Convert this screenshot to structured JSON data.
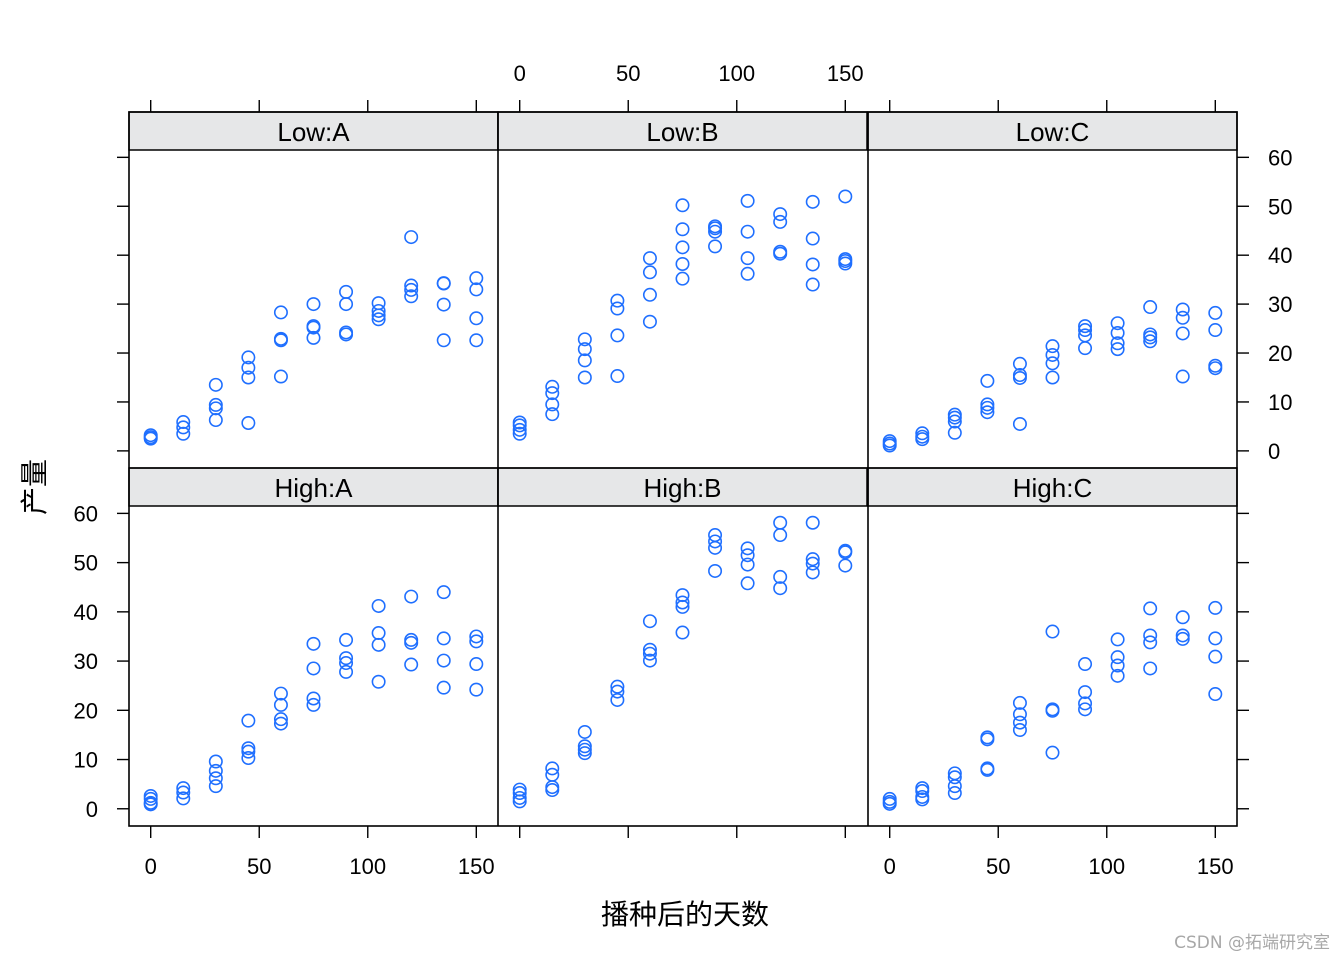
{
  "chart_data": {
    "type": "scatter",
    "xlabel": "播种后的天数",
    "ylabel": "产量",
    "xlim": [
      -10,
      160
    ],
    "ylim": [
      -3.5,
      61.5
    ],
    "x_ticks": [
      0,
      50,
      100,
      150
    ],
    "y_ticks": [
      0,
      10,
      20,
      30,
      40,
      50,
      60
    ],
    "point_color": "#1f6fff",
    "strip_color": "#e6e7e8",
    "layout": "2 rows x 3 columns",
    "panels": [
      {
        "label": "Low:A",
        "points": [
          [
            0,
            2.5
          ],
          [
            0,
            3.2
          ],
          [
            0,
            2.8
          ],
          [
            15,
            3.5
          ],
          [
            15,
            4.8
          ],
          [
            15,
            5.9
          ],
          [
            30,
            6.3
          ],
          [
            30,
            8.7
          ],
          [
            30,
            9.4
          ],
          [
            30,
            13.5
          ],
          [
            45,
            5.7
          ],
          [
            45,
            15
          ],
          [
            45,
            17
          ],
          [
            45,
            19.1
          ],
          [
            60,
            15.2
          ],
          [
            60,
            22.6
          ],
          [
            60,
            22.9
          ],
          [
            60,
            28.3
          ],
          [
            75,
            23.1
          ],
          [
            75,
            25.2
          ],
          [
            75,
            25.5
          ],
          [
            75,
            30
          ],
          [
            90,
            23.8
          ],
          [
            90,
            24.2
          ],
          [
            90,
            30
          ],
          [
            90,
            32.5
          ],
          [
            105,
            26.9
          ],
          [
            105,
            27.7
          ],
          [
            105,
            28.6
          ],
          [
            105,
            30.2
          ],
          [
            120,
            31.6
          ],
          [
            120,
            32.9
          ],
          [
            120,
            33.8
          ],
          [
            120,
            43.7
          ],
          [
            135,
            22.6
          ],
          [
            135,
            29.9
          ],
          [
            135,
            34.2
          ],
          [
            135,
            34.3
          ],
          [
            150,
            22.6
          ],
          [
            150,
            27.1
          ],
          [
            150,
            33
          ],
          [
            150,
            35.3
          ]
        ]
      },
      {
        "label": "Low:B",
        "points": [
          [
            0,
            3.5
          ],
          [
            0,
            4.3
          ],
          [
            0,
            5.2
          ],
          [
            0,
            5.8
          ],
          [
            15,
            7.5
          ],
          [
            15,
            9.5
          ],
          [
            15,
            11.8
          ],
          [
            15,
            13.1
          ],
          [
            30,
            15
          ],
          [
            30,
            18.5
          ],
          [
            30,
            20.8
          ],
          [
            30,
            22.8
          ],
          [
            45,
            15.3
          ],
          [
            45,
            23.6
          ],
          [
            45,
            29.1
          ],
          [
            45,
            30.7
          ],
          [
            60,
            26.4
          ],
          [
            60,
            31.9
          ],
          [
            60,
            36.5
          ],
          [
            60,
            39.4
          ],
          [
            75,
            35.2
          ],
          [
            75,
            38.2
          ],
          [
            75,
            41.6
          ],
          [
            75,
            45.3
          ],
          [
            75,
            50.2
          ],
          [
            90,
            41.8
          ],
          [
            90,
            44.8
          ],
          [
            90,
            45.5
          ],
          [
            90,
            45.9
          ],
          [
            105,
            36.2
          ],
          [
            105,
            39.4
          ],
          [
            105,
            44.8
          ],
          [
            105,
            51.1
          ],
          [
            120,
            40.3
          ],
          [
            120,
            40.7
          ],
          [
            120,
            46.8
          ],
          [
            120,
            48.4
          ],
          [
            135,
            34
          ],
          [
            135,
            38.1
          ],
          [
            135,
            43.4
          ],
          [
            135,
            50.9
          ],
          [
            150,
            38.3
          ],
          [
            150,
            38.8
          ],
          [
            150,
            39.2
          ],
          [
            150,
            52
          ]
        ]
      },
      {
        "label": "Low:C",
        "points": [
          [
            0,
            1.1
          ],
          [
            0,
            1.5
          ],
          [
            0,
            2
          ],
          [
            15,
            2.4
          ],
          [
            15,
            2.9
          ],
          [
            15,
            3.6
          ],
          [
            30,
            3.7
          ],
          [
            30,
            6
          ],
          [
            30,
            6.8
          ],
          [
            30,
            7.4
          ],
          [
            45,
            7.9
          ],
          [
            45,
            8.8
          ],
          [
            45,
            9.5
          ],
          [
            45,
            14.3
          ],
          [
            60,
            5.5
          ],
          [
            60,
            14.9
          ],
          [
            60,
            15.5
          ],
          [
            60,
            17.8
          ],
          [
            75,
            15
          ],
          [
            75,
            17.9
          ],
          [
            75,
            19.6
          ],
          [
            75,
            21.4
          ],
          [
            90,
            21
          ],
          [
            90,
            23.6
          ],
          [
            90,
            24.7
          ],
          [
            90,
            25.5
          ],
          [
            105,
            20.8
          ],
          [
            105,
            22
          ],
          [
            105,
            24.1
          ],
          [
            105,
            26.1
          ],
          [
            120,
            22.4
          ],
          [
            120,
            23.2
          ],
          [
            120,
            23.8
          ],
          [
            120,
            29.4
          ],
          [
            135,
            15.2
          ],
          [
            135,
            24
          ],
          [
            135,
            27.2
          ],
          [
            135,
            28.9
          ],
          [
            150,
            16.9
          ],
          [
            150,
            17.4
          ],
          [
            150,
            24.7
          ],
          [
            150,
            28.2
          ]
        ]
      },
      {
        "label": "High:A",
        "points": [
          [
            0,
            0.9
          ],
          [
            0,
            1.2
          ],
          [
            0,
            2
          ],
          [
            0,
            2.6
          ],
          [
            15,
            2.1
          ],
          [
            15,
            3.3
          ],
          [
            15,
            4.2
          ],
          [
            30,
            4.6
          ],
          [
            30,
            6.2
          ],
          [
            30,
            7.7
          ],
          [
            30,
            9.6
          ],
          [
            45,
            10.3
          ],
          [
            45,
            11.6
          ],
          [
            45,
            12.3
          ],
          [
            45,
            17.9
          ],
          [
            60,
            17.3
          ],
          [
            60,
            18.2
          ],
          [
            60,
            21.1
          ],
          [
            60,
            23.4
          ],
          [
            75,
            21.1
          ],
          [
            75,
            22.4
          ],
          [
            75,
            28.5
          ],
          [
            75,
            33.5
          ],
          [
            90,
            27.8
          ],
          [
            90,
            29.6
          ],
          [
            90,
            30.6
          ],
          [
            90,
            34.3
          ],
          [
            105,
            25.8
          ],
          [
            105,
            33.3
          ],
          [
            105,
            35.7
          ],
          [
            105,
            41.2
          ],
          [
            120,
            29.3
          ],
          [
            120,
            33.7
          ],
          [
            120,
            34.3
          ],
          [
            120,
            43.1
          ],
          [
            135,
            24.6
          ],
          [
            135,
            30.1
          ],
          [
            135,
            34.6
          ],
          [
            135,
            44
          ],
          [
            150,
            24.2
          ],
          [
            150,
            29.4
          ],
          [
            150,
            34
          ],
          [
            150,
            35
          ]
        ]
      },
      {
        "label": "High:B",
        "points": [
          [
            0,
            1.5
          ],
          [
            0,
            2.2
          ],
          [
            0,
            3.2
          ],
          [
            0,
            3.9
          ],
          [
            15,
            3.8
          ],
          [
            15,
            4.4
          ],
          [
            15,
            6.9
          ],
          [
            15,
            8.2
          ],
          [
            30,
            11.3
          ],
          [
            30,
            12
          ],
          [
            30,
            12.7
          ],
          [
            30,
            15.6
          ],
          [
            45,
            22.1
          ],
          [
            45,
            23.8
          ],
          [
            45,
            24.8
          ],
          [
            60,
            30.1
          ],
          [
            60,
            31.5
          ],
          [
            60,
            32.3
          ],
          [
            60,
            38.1
          ],
          [
            75,
            35.8
          ],
          [
            75,
            41
          ],
          [
            75,
            41.9
          ],
          [
            75,
            43.4
          ],
          [
            90,
            48.3
          ],
          [
            90,
            53
          ],
          [
            90,
            54.3
          ],
          [
            90,
            55.6
          ],
          [
            105,
            45.8
          ],
          [
            105,
            49.6
          ],
          [
            105,
            51.5
          ],
          [
            105,
            52.9
          ],
          [
            120,
            44.8
          ],
          [
            120,
            47.1
          ],
          [
            120,
            55.6
          ],
          [
            120,
            58.1
          ],
          [
            135,
            48
          ],
          [
            135,
            49.8
          ],
          [
            135,
            50.7
          ],
          [
            135,
            58.1
          ],
          [
            150,
            49.4
          ],
          [
            150,
            52.1
          ],
          [
            150,
            52.4
          ]
        ]
      },
      {
        "label": "High:C",
        "points": [
          [
            0,
            1
          ],
          [
            0,
            1.4
          ],
          [
            0,
            2
          ],
          [
            15,
            1.9
          ],
          [
            15,
            2.4
          ],
          [
            15,
            3.6
          ],
          [
            15,
            4.2
          ],
          [
            30,
            3.2
          ],
          [
            30,
            4.6
          ],
          [
            30,
            6.4
          ],
          [
            30,
            7.2
          ],
          [
            45,
            7.9
          ],
          [
            45,
            8.2
          ],
          [
            45,
            14.1
          ],
          [
            45,
            14.5
          ],
          [
            60,
            16
          ],
          [
            60,
            17.5
          ],
          [
            60,
            19.2
          ],
          [
            60,
            21.5
          ],
          [
            75,
            11.4
          ],
          [
            75,
            19.9
          ],
          [
            75,
            20.2
          ],
          [
            75,
            36
          ],
          [
            90,
            20.2
          ],
          [
            90,
            21.4
          ],
          [
            90,
            23.7
          ],
          [
            90,
            29.4
          ],
          [
            105,
            27
          ],
          [
            105,
            29.1
          ],
          [
            105,
            30.8
          ],
          [
            105,
            34.4
          ],
          [
            120,
            28.5
          ],
          [
            120,
            33.8
          ],
          [
            120,
            35.2
          ],
          [
            120,
            40.7
          ],
          [
            135,
            34.5
          ],
          [
            135,
            35.2
          ],
          [
            135,
            38.9
          ],
          [
            150,
            23.3
          ],
          [
            150,
            30.9
          ],
          [
            150,
            34.6
          ],
          [
            150,
            40.8
          ]
        ]
      }
    ]
  },
  "watermark": "CSDN @拓端研究室"
}
